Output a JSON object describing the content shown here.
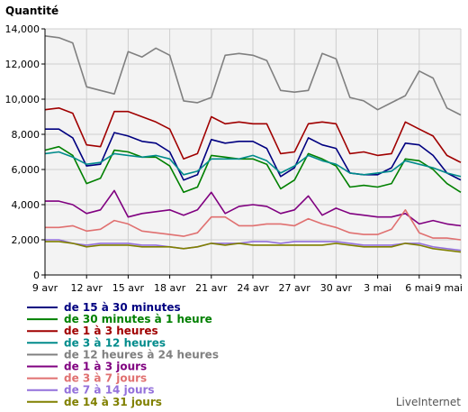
{
  "chart_data": {
    "type": "line",
    "ylabel": "Quantité",
    "ylim": [
      0,
      14000
    ],
    "y_ticks": [
      "0",
      "2,000",
      "4,000",
      "6,000",
      "8,000",
      "10,000",
      "12,000",
      "14,000"
    ],
    "y_tick_values": [
      0,
      2000,
      4000,
      6000,
      8000,
      10000,
      12000,
      14000
    ],
    "x_tick_labels": [
      "9 avr",
      "12 avr",
      "15 avr",
      "18 avr",
      "21 avr",
      "24 avr",
      "27 avr",
      "30 avr",
      "3 mai",
      "6 mai",
      "9 mai"
    ],
    "grid": true,
    "legend_position": "bottom",
    "brand": "LiveInternet",
    "x": [
      "9 avr",
      "10 avr",
      "11 avr",
      "12 avr",
      "13 avr",
      "14 avr",
      "15 avr",
      "16 avr",
      "17 avr",
      "18 avr",
      "19 avr",
      "20 avr",
      "21 avr",
      "22 avr",
      "23 avr",
      "24 avr",
      "25 avr",
      "26 avr",
      "27 avr",
      "28 avr",
      "29 avr",
      "30 avr",
      "1 mai",
      "2 mai",
      "3 mai",
      "4 mai",
      "5 mai",
      "6 mai",
      "7 mai",
      "8 mai",
      "9 mai"
    ],
    "series": [
      {
        "name": "de 15 à 30 minutes",
        "color": "#000080",
        "values": [
          8300,
          8300,
          7800,
          6200,
          6300,
          8100,
          7900,
          7600,
          7500,
          7000,
          5400,
          5700,
          7700,
          7500,
          7600,
          7600,
          7200,
          5600,
          6100,
          7800,
          7400,
          7200,
          5800,
          5700,
          5700,
          6100,
          7500,
          7400,
          6800,
          5800,
          5400
        ]
      },
      {
        "name": "de 30 minutes à 1 heure",
        "color": "#008000",
        "values": [
          7100,
          7300,
          6800,
          5200,
          5500,
          7100,
          7000,
          6700,
          6700,
          6200,
          4700,
          5000,
          6800,
          6700,
          6600,
          6600,
          6300,
          4900,
          5400,
          6900,
          6600,
          6200,
          5000,
          5100,
          5000,
          5200,
          6600,
          6500,
          6000,
          5200,
          4700
        ]
      },
      {
        "name": "de 1 à 3 heures",
        "color": "#a00000",
        "values": [
          9400,
          9500,
          9200,
          7400,
          7300,
          9300,
          9300,
          9000,
          8700,
          8300,
          6600,
          6900,
          9000,
          8600,
          8700,
          8600,
          8600,
          6900,
          7000,
          8600,
          8700,
          8600,
          6900,
          7000,
          6800,
          6900,
          8700,
          8300,
          7900,
          6800,
          6400
        ]
      },
      {
        "name": "de 3 à 12 heures",
        "color": "#008b8b",
        "values": [
          6900,
          7000,
          6700,
          6300,
          6400,
          6900,
          6800,
          6700,
          6800,
          6600,
          5700,
          5900,
          6600,
          6600,
          6600,
          6800,
          6500,
          5800,
          6200,
          6800,
          6500,
          6300,
          5800,
          5700,
          5800,
          5900,
          6500,
          6300,
          6100,
          5800,
          5600
        ]
      },
      {
        "name": "de 12 heures à 24 heures",
        "color": "#808080",
        "values": [
          13600,
          13500,
          13200,
          10700,
          10500,
          10300,
          12700,
          12400,
          12900,
          12500,
          9900,
          9800,
          10100,
          12500,
          12600,
          12500,
          12200,
          10500,
          10400,
          10500,
          12600,
          12300,
          10100,
          9900,
          9400,
          9800,
          10200,
          11600,
          11200,
          9500,
          9100
        ]
      },
      {
        "name": "de 1 à 3 jours",
        "color": "#800080",
        "values": [
          4200,
          4200,
          4000,
          3500,
          3700,
          4800,
          3300,
          3500,
          3600,
          3700,
          3400,
          3700,
          4700,
          3500,
          3900,
          4000,
          3900,
          3500,
          3700,
          4500,
          3400,
          3800,
          3500,
          3400,
          3300,
          3300,
          3500,
          2900,
          3100,
          2900,
          2800
        ]
      },
      {
        "name": "de 3 à 7 jours",
        "color": "#e07070",
        "values": [
          2700,
          2700,
          2800,
          2500,
          2600,
          3100,
          2900,
          2500,
          2400,
          2300,
          2200,
          2400,
          3300,
          3300,
          2800,
          2800,
          2900,
          2900,
          2800,
          3200,
          2900,
          2700,
          2400,
          2300,
          2300,
          2600,
          3700,
          2400,
          2100,
          2100,
          2000
        ]
      },
      {
        "name": "de 7 à 14 jours",
        "color": "#9370db",
        "values": [
          2000,
          2000,
          1800,
          1700,
          1800,
          1800,
          1800,
          1700,
          1700,
          1600,
          1500,
          1600,
          1800,
          1800,
          1800,
          1900,
          1900,
          1800,
          1900,
          1900,
          1900,
          1900,
          1800,
          1700,
          1700,
          1700,
          1800,
          1800,
          1600,
          1500,
          1400
        ]
      },
      {
        "name": "de 14 à 31 jours",
        "color": "#808000",
        "values": [
          1900,
          1900,
          1800,
          1600,
          1700,
          1700,
          1700,
          1600,
          1600,
          1600,
          1500,
          1600,
          1800,
          1700,
          1800,
          1700,
          1700,
          1700,
          1700,
          1700,
          1700,
          1800,
          1700,
          1600,
          1600,
          1600,
          1800,
          1700,
          1500,
          1400,
          1300
        ]
      }
    ]
  }
}
